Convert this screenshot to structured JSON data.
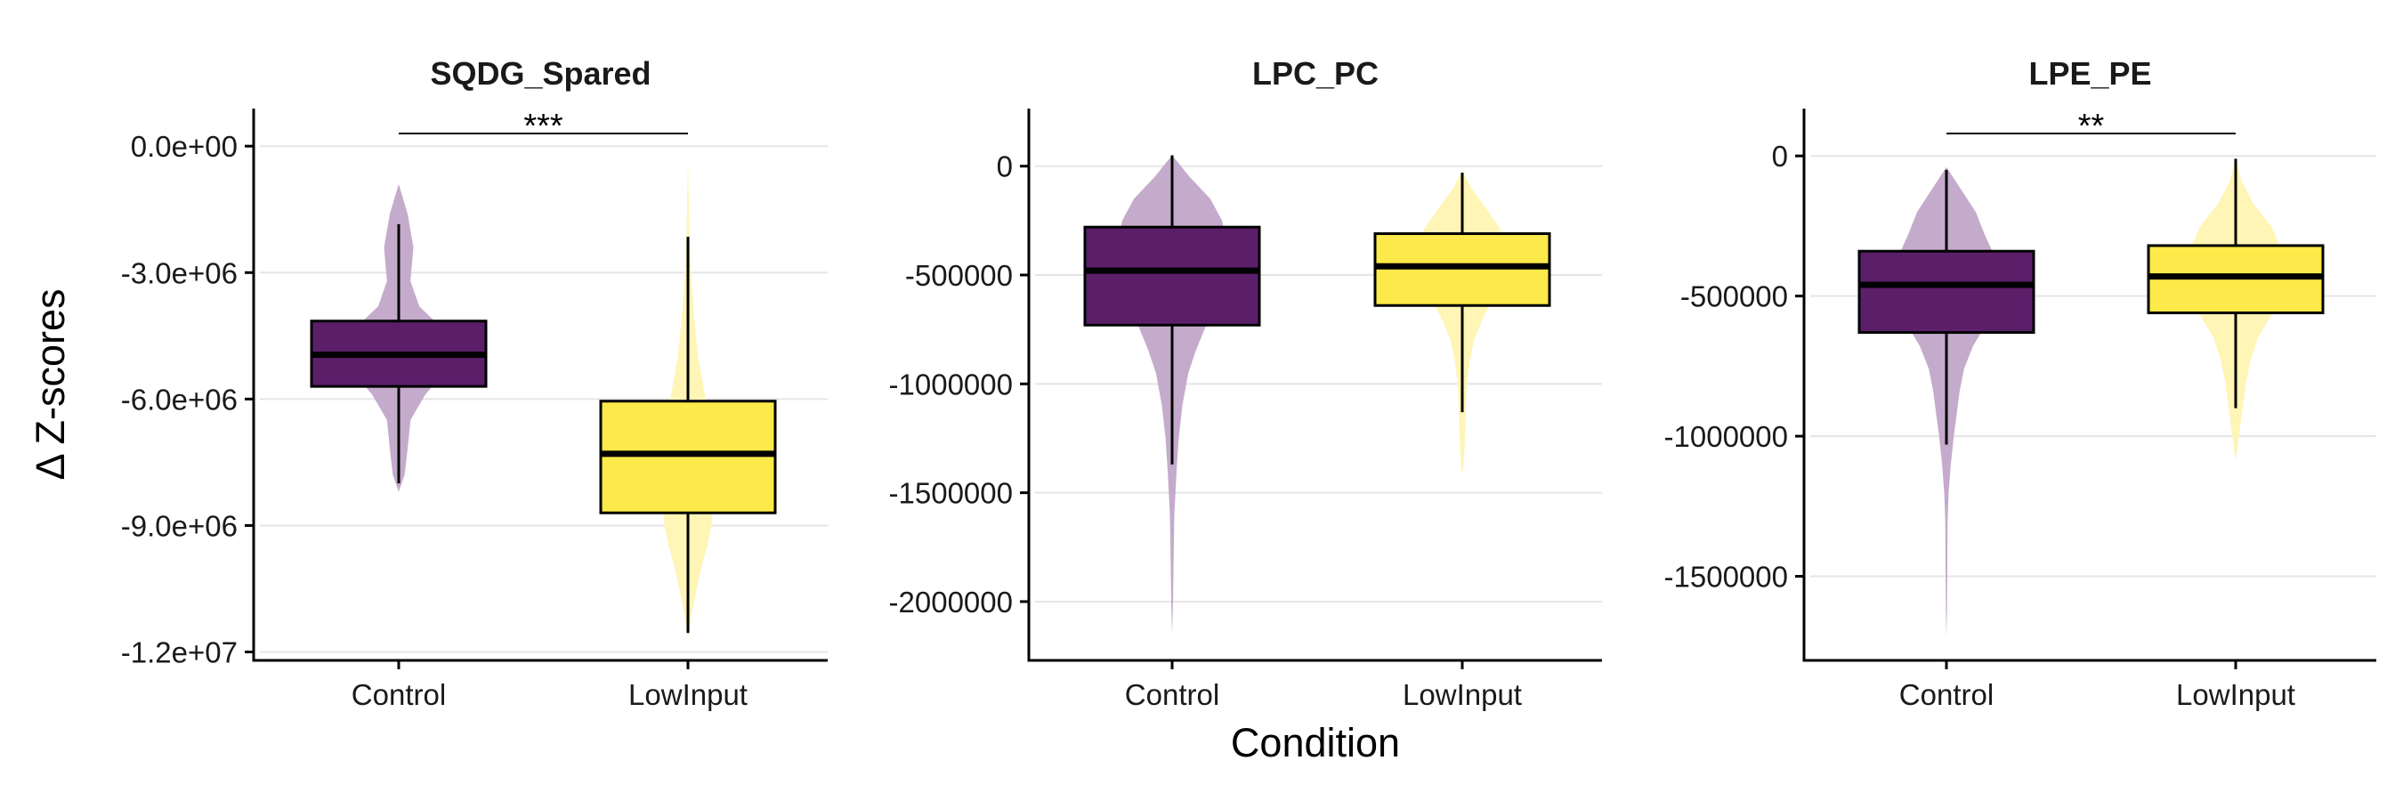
{
  "colors": {
    "Control": "#5B1F6A",
    "Control_violin": "#C4ABCB",
    "LowInput": "#FCE94A",
    "LowInput_violin": "#FEF5B6",
    "grid": "#E5E5E5",
    "axis": "#000000"
  },
  "figure": {
    "xlabel": "Condition",
    "ylabel": "Δ Z-scores"
  },
  "chart_data": [
    {
      "type": "box",
      "title": "SQDG_Spared",
      "categories": [
        "Control",
        "LowInput"
      ],
      "ylim": [
        -12200000,
        300000
      ],
      "yticks": [
        0,
        -3000000,
        -6000000,
        -9000000,
        -12000000
      ],
      "ytick_labels": [
        "0.0e+00",
        "-3.0e+06",
        "-6.0e+06",
        "-9.0e+06",
        "-1.2e+07"
      ],
      "boxes": [
        {
          "name": "Control",
          "q1": -5700000,
          "median": -4950000,
          "q3": -4150000,
          "whisker_low": -8000000,
          "whisker_high": -1850000
        },
        {
          "name": "LowInput",
          "q1": -8700000,
          "median": -7300000,
          "q3": -6050000,
          "whisker_low": -11550000,
          "whisker_high": -2150000
        }
      ],
      "violins": [
        {
          "name": "Control",
          "y": [
            -900000,
            -1600000,
            -2400000,
            -3200000,
            -3800000,
            -4400000,
            -4900000,
            -5400000,
            -5900000,
            -6500000,
            -7200000,
            -7800000,
            -8200000
          ],
          "w": [
            0.0,
            0.06,
            0.1,
            0.08,
            0.14,
            0.32,
            0.43,
            0.3,
            0.18,
            0.08,
            0.06,
            0.04,
            0.0
          ]
        },
        {
          "name": "LowInput",
          "y": [
            -300000,
            -1200000,
            -2000000,
            -3000000,
            -4000000,
            -5000000,
            -6000000,
            -6500000,
            -7000000,
            -7500000,
            -8000000,
            -8500000,
            -9000000,
            -9500000,
            -10000000,
            -10500000,
            -11000000,
            -11650000
          ],
          "w": [
            0.0,
            0.005,
            0.01,
            0.02,
            0.04,
            0.07,
            0.12,
            0.15,
            0.14,
            0.12,
            0.14,
            0.17,
            0.16,
            0.13,
            0.09,
            0.06,
            0.03,
            0.0
          ]
        }
      ],
      "significance": "***"
    },
    {
      "type": "box",
      "title": "LPC_PC",
      "categories": [
        "Control",
        "LowInput"
      ],
      "ylim": [
        -2270000,
        150000
      ],
      "yticks": [
        0,
        -500000,
        -1000000,
        -1500000,
        -2000000
      ],
      "ytick_labels": [
        "0",
        "-500000",
        "-1000000",
        "-1500000",
        "-2000000"
      ],
      "boxes": [
        {
          "name": "Control",
          "q1": -730000,
          "median": -480000,
          "q3": -280000,
          "whisker_low": -1370000,
          "whisker_high": 50000
        },
        {
          "name": "LowInput",
          "q1": -640000,
          "median": -460000,
          "q3": -310000,
          "whisker_low": -1130000,
          "whisker_high": -30000
        }
      ],
      "violins": [
        {
          "name": "Control",
          "y": [
            50000,
            -50000,
            -150000,
            -250000,
            -350000,
            -450000,
            -550000,
            -650000,
            -750000,
            -850000,
            -950000,
            -1100000,
            -1250000,
            -1400000,
            -1600000,
            -1800000,
            -2000000,
            -2150000
          ],
          "w": [
            0.0,
            0.12,
            0.26,
            0.34,
            0.37,
            0.36,
            0.33,
            0.28,
            0.22,
            0.16,
            0.11,
            0.07,
            0.045,
            0.03,
            0.015,
            0.01,
            0.006,
            0.0
          ]
        },
        {
          "name": "LowInput",
          "y": [
            -20000,
            -100000,
            -200000,
            -300000,
            -400000,
            -500000,
            -600000,
            -700000,
            -800000,
            -900000,
            -1000000,
            -1100000,
            -1200000,
            -1300000,
            -1430000
          ],
          "w": [
            0.0,
            0.06,
            0.17,
            0.27,
            0.3,
            0.28,
            0.22,
            0.14,
            0.08,
            0.05,
            0.03,
            0.025,
            0.02,
            0.015,
            0.0
          ]
        }
      ],
      "significance": ""
    },
    {
      "type": "box",
      "title": "LPE_PE",
      "categories": [
        "Control",
        "LowInput"
      ],
      "ylim": [
        -1800000,
        80000
      ],
      "yticks": [
        0,
        -500000,
        -1000000,
        -1500000
      ],
      "ytick_labels": [
        "0",
        "-500000",
        "-1000000",
        "-1500000"
      ],
      "boxes": [
        {
          "name": "Control",
          "q1": -630000,
          "median": -460000,
          "q3": -340000,
          "whisker_low": -1030000,
          "whisker_high": -50000
        },
        {
          "name": "LowInput",
          "q1": -560000,
          "median": -430000,
          "q3": -320000,
          "whisker_low": -900000,
          "whisker_high": -10000
        }
      ],
      "violins": [
        {
          "name": "Control",
          "y": [
            -40000,
            -120000,
            -200000,
            -280000,
            -360000,
            -440000,
            -520000,
            -600000,
            -680000,
            -760000,
            -840000,
            -920000,
            -1000000,
            -1100000,
            -1200000,
            -1300000,
            -1450000,
            -1600000,
            -1720000
          ],
          "w": [
            0.0,
            0.1,
            0.2,
            0.26,
            0.33,
            0.38,
            0.35,
            0.27,
            0.18,
            0.12,
            0.09,
            0.07,
            0.05,
            0.03,
            0.015,
            0.008,
            0.006,
            0.004,
            0.0
          ]
        },
        {
          "name": "LowInput",
          "y": [
            -10000,
            -90000,
            -170000,
            -250000,
            -330000,
            -410000,
            -490000,
            -570000,
            -650000,
            -730000,
            -810000,
            -890000,
            -970000,
            -1090000
          ],
          "w": [
            0.0,
            0.04,
            0.12,
            0.24,
            0.31,
            0.36,
            0.32,
            0.24,
            0.15,
            0.1,
            0.07,
            0.05,
            0.03,
            0.0
          ]
        }
      ],
      "significance": "**"
    }
  ]
}
